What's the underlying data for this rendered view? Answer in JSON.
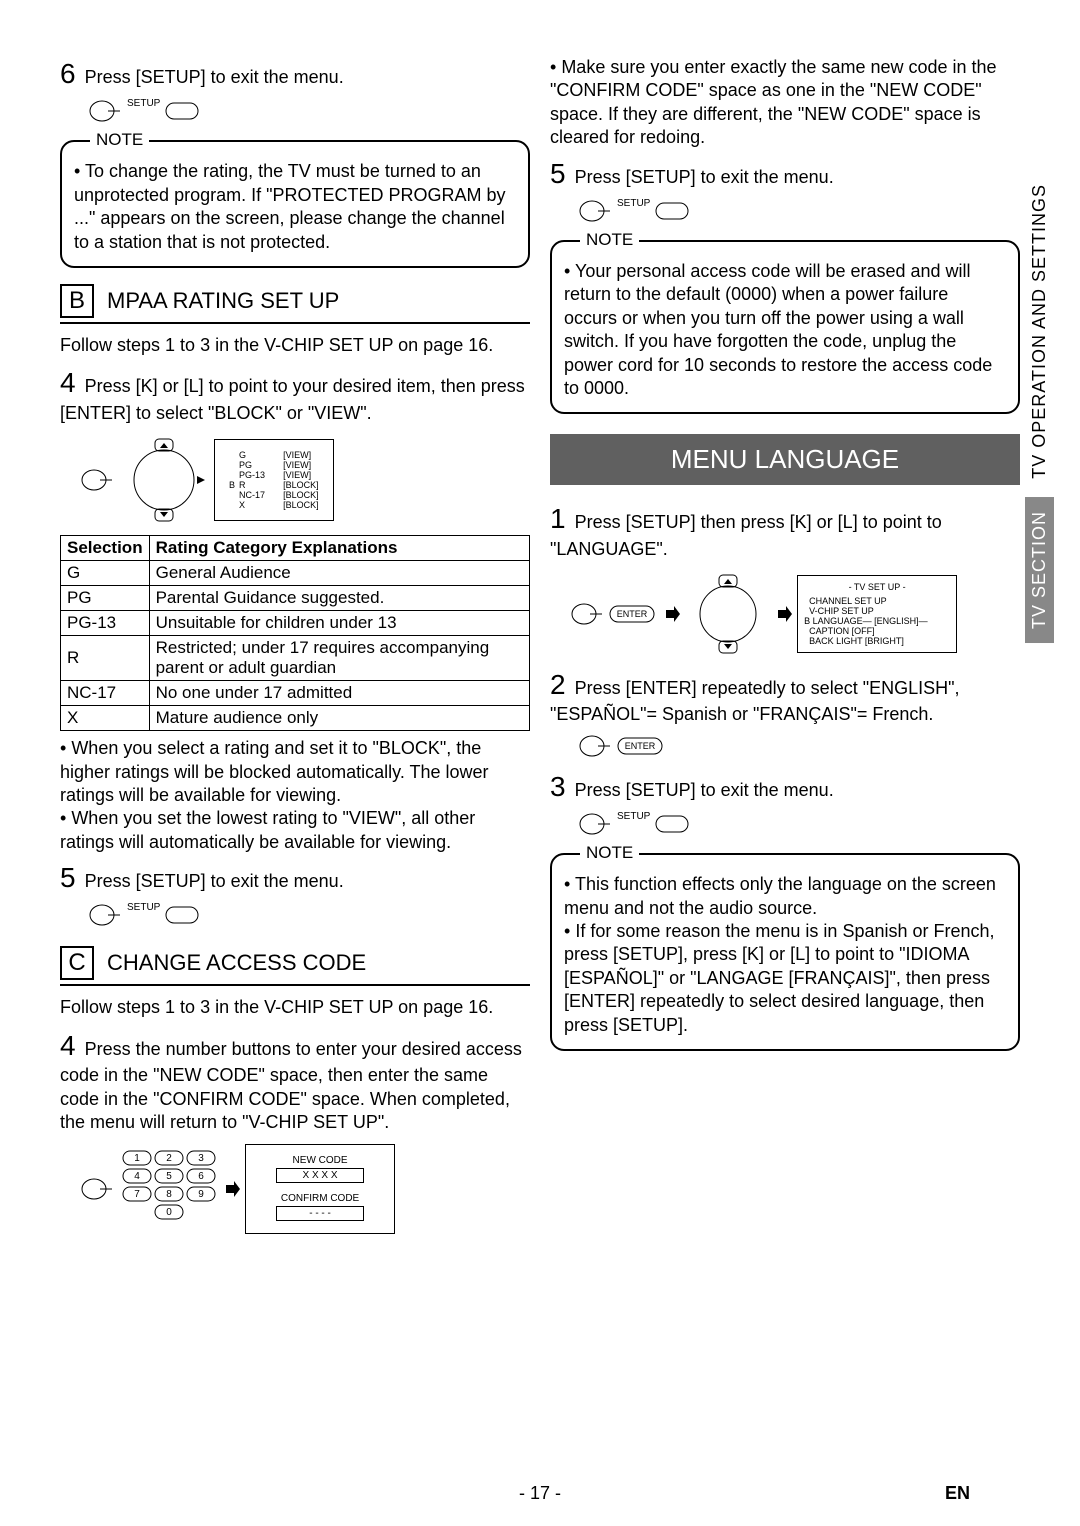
{
  "left": {
    "step6": "Press [SETUP] to exit the menu.",
    "setup_label": "SETUP",
    "note1_label": "NOTE",
    "note1_items": [
      "To change the rating, the TV must be turned to an unprotected program. If \"PROTECTED PROGRAM by ...\" appears on the screen, please change the channel to a station that is not protected."
    ],
    "sectionB_letter": "B",
    "sectionB_title": "MPAA RATING SET UP",
    "sectionB_follow": "Follow steps 1 to 3 in the V-CHIP SET UP on page 16.",
    "step4B": "Press [K] or [L] to point to your desired item, then press [ENTER] to select \"BLOCK\" or \"VIEW\".",
    "mpaa_rows": [
      "G",
      "PG",
      "PG-13",
      "R",
      "NC-17",
      "X"
    ],
    "mpaa_states": [
      "[VIEW]",
      "[VIEW]",
      "[VIEW]",
      "[BLOCK]",
      "[BLOCK]",
      "[BLOCK]"
    ],
    "table_h1": "Selection",
    "table_h2": "Rating Category Explanations",
    "table": [
      [
        "G",
        "General Audience"
      ],
      [
        "PG",
        "Parental Guidance suggested."
      ],
      [
        "PG-13",
        "Unsuitable for children under 13"
      ],
      [
        "R",
        "Restricted; under 17 requires accompanying parent or adult guardian"
      ],
      [
        "NC-17",
        "No one under 17 admitted"
      ],
      [
        "X",
        "Mature audience only"
      ]
    ],
    "bullets_after_table": [
      "When you select a rating and set it to \"BLOCK\", the higher ratings will be blocked automatically. The lower ratings will be available for viewing.",
      "When you set the lowest rating to \"VIEW\", all other ratings will automatically be available for viewing."
    ],
    "step5B": "Press [SETUP] to exit the menu.",
    "sectionC_letter": "C",
    "sectionC_title": "CHANGE ACCESS CODE",
    "sectionC_follow": "Follow steps 1 to 3 in the V-CHIP SET UP on page 16.",
    "step4C": "Press the number buttons to enter your desired access code in the \"NEW CODE\" space, then enter the same code in the \"CONFIRM CODE\" space. When completed, the menu will return to \"V-CHIP SET UP\".",
    "newcode": "NEW CODE",
    "newcode_val": "X X X X",
    "confcode": "CONFIRM CODE",
    "confcode_val": "- - - -"
  },
  "right": {
    "top_bullet": "Make sure you enter exactly the same new code in the \"CONFIRM CODE\" space as one in the \"NEW CODE\" space. If they are different, the \"NEW CODE\" space is cleared for redoing.",
    "step5R": "Press [SETUP] to exit the menu.",
    "setup_label": "SETUP",
    "note2_label": "NOTE",
    "note2_items": [
      "Your personal access code will be erased and will return to the default (0000) when a power failure occurs or when you turn off the power using a wall switch. If you have forgotten the code, unplug the power cord for 10 seconds to restore the access code to 0000."
    ],
    "menu_lang": "MENU LANGUAGE",
    "step1M": "Press [SETUP] then press [K] or [L] to point to \"LANGUAGE\".",
    "enter_label": "ENTER",
    "tvsetup_title": "- TV SET UP -",
    "tvsetup_lines": [
      "CHANNEL SET UP",
      "V-CHIP SET UP",
      "LANGUAGE— [ENGLISH]—",
      "CAPTION        [OFF]",
      "BACK LIGHT  [BRIGHT]"
    ],
    "step2M": "Press [ENTER] repeatedly to select \"ENGLISH\", \"ESPAÑOL\"= Spanish or \"FRANÇAIS\"= French.",
    "step3M": "Press [SETUP] to exit the menu.",
    "note3_label": "NOTE",
    "note3_items": [
      "This function effects only the language on the screen menu and not the audio source.",
      "If for some reason the menu is in Spanish or French, press [SETUP], press [K] or [L] to point to \"IDIOMA [ESPAÑOL]\" or \"LANGAGE [FRANÇAIS]\", then press [ENTER] repeatedly to select desired language, then press [SETUP]."
    ]
  },
  "side": {
    "tab1": "TV OPERATION AND SETTINGS",
    "tab2": "TV SECTION"
  },
  "page": {
    "num": "- 17 -",
    "lang": "EN"
  }
}
